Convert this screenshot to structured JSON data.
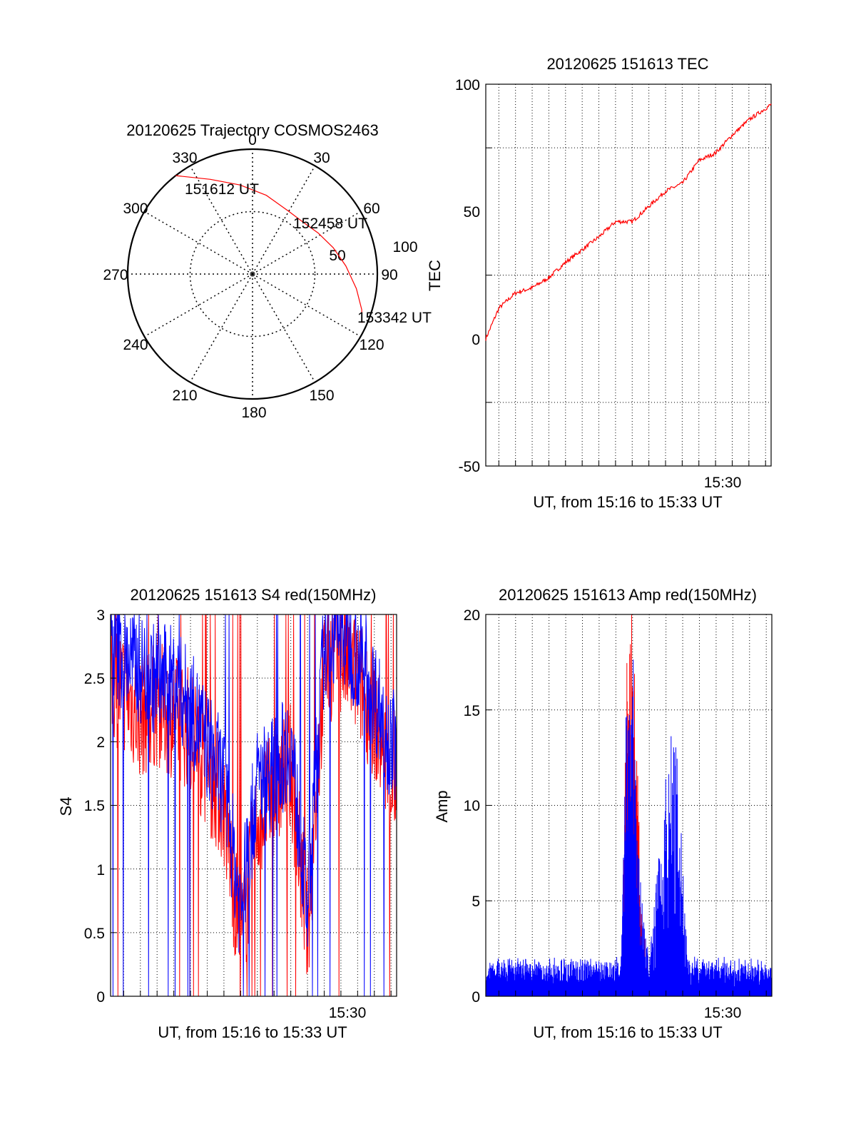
{
  "polar": {
    "title": "20120625 Trajectory COSMOS2463",
    "azimuth_labels": [
      "0",
      "30",
      "60",
      "90",
      "120",
      "150",
      "180",
      "210",
      "240",
      "270",
      "300",
      "330"
    ],
    "radius_labels": [
      "50",
      "100"
    ],
    "start_label": "151612 UT",
    "mid_label": "152458 UT",
    "end_label": "153342 UT",
    "colors": {
      "trajectory": "#ff0000"
    }
  },
  "tec": {
    "title": "20120625 151613 TEC",
    "ylabel": "TEC",
    "xlabel": "UT, from 15:16 to 15:33 UT",
    "ytick_labels": [
      "100",
      "50",
      "0",
      "-50"
    ],
    "xtick_label": "15:30"
  },
  "s4": {
    "title": "20120625 151613 S4 red(150MHz)",
    "ylabel": "S4",
    "xlabel": "UT, from 15:16 to 15:33 UT",
    "ytick_labels": [
      "3",
      "2.5",
      "2",
      "1.5",
      "1",
      "0.5",
      "0"
    ],
    "xtick_label": "15:30"
  },
  "amp": {
    "title": "20120625 151613 Amp red(150MHz)",
    "ylabel": "Amp",
    "xlabel": "UT, from 15:16 to 15:33 UT",
    "ytick_labels": [
      "20",
      "15",
      "10",
      "5",
      "0"
    ],
    "xtick_label": "15:30"
  },
  "chart_data": [
    {
      "type": "line",
      "subtype": "polar",
      "title": "20120625 Trajectory COSMOS2463",
      "r_range": [
        0,
        100
      ],
      "theta_ticks": [
        0,
        30,
        60,
        90,
        120,
        150,
        180,
        210,
        240,
        270,
        300,
        330
      ],
      "r_ticks": [
        50,
        100
      ],
      "series": [
        {
          "color": "#ff0000",
          "points": [
            {
              "az": 322,
              "r": 100
            },
            {
              "az": 336,
              "r": 83
            },
            {
              "az": 352,
              "r": 72
            },
            {
              "az": 10,
              "r": 64
            },
            {
              "az": 30,
              "r": 58
            },
            {
              "az": 44,
              "r": 58
            },
            {
              "az": 58,
              "r": 62
            },
            {
              "az": 72,
              "r": 68
            },
            {
              "az": 85,
              "r": 75
            },
            {
              "az": 98,
              "r": 84
            },
            {
              "az": 108,
              "r": 92
            },
            {
              "az": 114,
              "r": 96
            }
          ]
        }
      ],
      "annotations": [
        "151612 UT",
        "152458 UT",
        "153342 UT"
      ]
    },
    {
      "type": "line",
      "title": "20120625 151613 TEC",
      "xlabel": "UT, from 15:16 to 15:33 UT",
      "ylabel": "TEC",
      "xlim": [
        "15:16:13",
        "15:33:20"
      ],
      "ylim": [
        -50,
        100
      ],
      "grid": true,
      "series": [
        {
          "color": "#ff0000",
          "x": [
            "15:16:13",
            "15:17:00",
            "15:18:00",
            "15:19:00",
            "15:20:00",
            "15:21:00",
            "15:22:00",
            "15:23:00",
            "15:24:00",
            "15:25:00",
            "15:26:00",
            "15:27:00",
            "15:28:00",
            "15:29:00",
            "15:30:00",
            "15:31:00",
            "15:32:00",
            "15:33:20"
          ],
          "y": [
            0,
            12,
            18,
            20,
            24,
            30,
            35,
            40,
            46,
            46,
            52,
            58,
            61,
            70,
            73,
            80,
            86,
            92
          ]
        }
      ]
    },
    {
      "type": "line",
      "title": "20120625 151613 S4 red(150MHz)",
      "xlabel": "UT, from 15:16 to 15:33 UT",
      "ylabel": "S4",
      "xlim": [
        "15:16:13",
        "15:33:20"
      ],
      "ylim": [
        0,
        3
      ],
      "grid": true,
      "series": [
        {
          "color": "#ff0000",
          "x": [
            "15:16",
            "15:17",
            "15:18",
            "15:19",
            "15:20",
            "15:21",
            "15:22",
            "15:23",
            "15:24",
            "15:25",
            "15:26",
            "15:27",
            "15:28",
            "15:29",
            "15:30",
            "15:31",
            "15:32",
            "15:33"
          ],
          "y": [
            2.3,
            2.2,
            2.0,
            2.1,
            2.0,
            1.9,
            1.6,
            1.3,
            0.2,
            1.2,
            1.4,
            1.6,
            0.3,
            2.4,
            2.5,
            2.3,
            2.0,
            1.5
          ]
        },
        {
          "color": "#0000ff",
          "x": [
            "15:16",
            "15:17",
            "15:18",
            "15:19",
            "15:20",
            "15:21",
            "15:22",
            "15:23",
            "15:24",
            "15:25",
            "15:26",
            "15:27",
            "15:28",
            "15:29",
            "15:30",
            "15:31",
            "15:32",
            "15:33"
          ],
          "y": [
            2.6,
            2.5,
            2.4,
            2.3,
            2.3,
            2.1,
            1.8,
            1.5,
            0.5,
            1.5,
            1.6,
            1.8,
            0.5,
            2.6,
            2.7,
            2.5,
            2.2,
            1.8
          ]
        }
      ]
    },
    {
      "type": "line",
      "title": "20120625 151613 Amp red(150MHz)",
      "xlabel": "UT, from 15:16 to 15:33 UT",
      "ylabel": "Amp",
      "xlim": [
        "15:16:13",
        "15:33:20"
      ],
      "ylim": [
        0,
        20
      ],
      "grid": true,
      "series": [
        {
          "color": "#ff0000",
          "x": [
            "15:16",
            "15:20",
            "15:24:20",
            "15:24:40",
            "15:25:00",
            "15:25:30",
            "15:26",
            "15:27:10",
            "15:27:30",
            "15:27:50",
            "15:28:20",
            "15:30",
            "15:33"
          ],
          "y": [
            0,
            0,
            0,
            17,
            20,
            5,
            0,
            2,
            4,
            3,
            0,
            0,
            0
          ]
        },
        {
          "color": "#0000ff",
          "x": [
            "15:16",
            "15:20",
            "15:24:20",
            "15:24:40",
            "15:25:00",
            "15:25:30",
            "15:26",
            "15:27:10",
            "15:27:30",
            "15:27:50",
            "15:28:20",
            "15:30",
            "15:33"
          ],
          "y": [
            1.3,
            1.4,
            1.5,
            16,
            17.5,
            5,
            1.5,
            12,
            13,
            9,
            1.5,
            1.4,
            1.3
          ]
        }
      ]
    }
  ]
}
